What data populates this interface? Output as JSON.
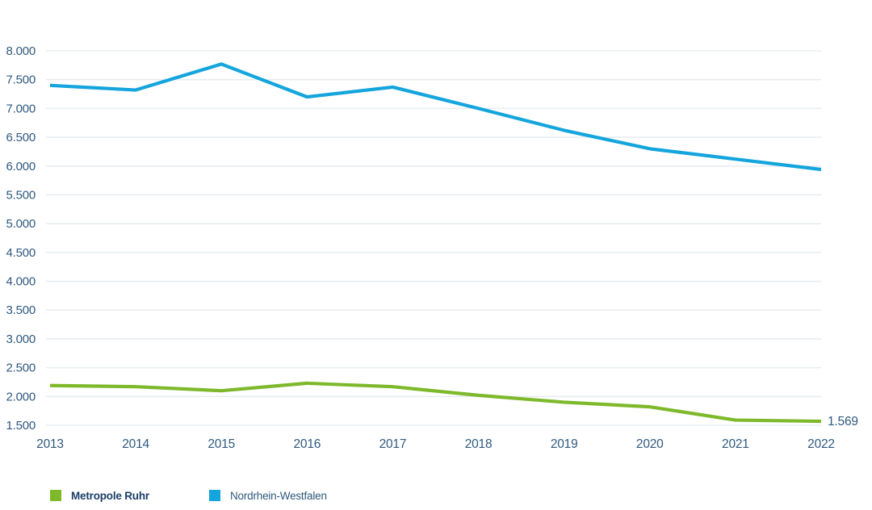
{
  "chart_data": {
    "type": "line",
    "title": "",
    "xlabel": "",
    "ylabel": "",
    "x_labels": [
      "2013",
      "2014",
      "2015",
      "2016",
      "2017",
      "2018",
      "2019",
      "2020",
      "2021",
      "2022"
    ],
    "series": [
      {
        "name": "Metropole Ruhr",
        "color": "#7eb92c",
        "values": [
          2190,
          2170,
          2100,
          2230,
          2170,
          2020,
          1900,
          1820,
          1590,
          1569
        ]
      },
      {
        "name": "Nordrhein-Westfalen",
        "color": "#14a5dd",
        "values": [
          7400,
          7320,
          7770,
          7200,
          7370,
          7000,
          6620,
          6300,
          6120,
          5940
        ]
      }
    ],
    "ylim": [
      1500,
      8000
    ],
    "ytick_step": 500,
    "yticks": [
      {
        "value": 1500,
        "label": "1.500"
      },
      {
        "value": 2000,
        "label": "2.000"
      },
      {
        "value": 2500,
        "label": "2.500"
      },
      {
        "value": 3000,
        "label": "3.000"
      },
      {
        "value": 3500,
        "label": "3.500"
      },
      {
        "value": 4000,
        "label": "4.000"
      },
      {
        "value": 4500,
        "label": "4.500"
      },
      {
        "value": 5000,
        "label": "5.000"
      },
      {
        "value": 5500,
        "label": "5.500"
      },
      {
        "value": 6000,
        "label": "6.000"
      },
      {
        "value": 6500,
        "label": "6.500"
      },
      {
        "value": 7000,
        "label": "7.000"
      },
      {
        "value": 7500,
        "label": "7.500"
      },
      {
        "value": 8000,
        "label": "8.000"
      }
    ],
    "grid": "horizontal-only",
    "legend_position": "bottom-left",
    "end_label": {
      "series": "Metropole Ruhr",
      "x": "2022",
      "text": "1.569",
      "value": 1569
    }
  },
  "legend": {
    "items": [
      {
        "label": "Metropole Ruhr",
        "color": "#7eb92c",
        "emphasis": "bold"
      },
      {
        "label": "Nordrhein-Westfalen",
        "color": "#14a5dd",
        "emphasis": "regular"
      }
    ]
  },
  "colors": {
    "axis_text": "#2f597e",
    "grid": "#e9edf0",
    "legend_text_primary": "#1b3f66",
    "legend_text_secondary": "#2f597e",
    "background": "#ffffff"
  }
}
